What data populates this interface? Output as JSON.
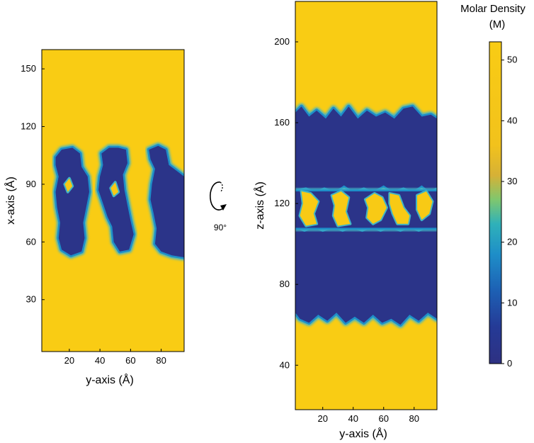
{
  "rotation": {
    "label": "90°"
  },
  "colors": {
    "high": "#f9cc14",
    "low": "#2e3182",
    "edge": "#1e8ec8",
    "edge_outer": "#3fb4c6",
    "background": "#ffffff"
  },
  "chart_data": [
    {
      "type": "heatmap",
      "id": "left-panel",
      "title": "",
      "xlabel": "y-axis (Å)",
      "ylabel": "x-axis (Å)",
      "xlim": [
        2,
        95
      ],
      "ylim": [
        3,
        160
      ],
      "xticks": [
        20,
        40,
        60,
        80
      ],
      "yticks": [
        30,
        60,
        90,
        120,
        150
      ],
      "value_outside_regions": 52,
      "low_density_regions": [
        {
          "name": "column-1",
          "value": 2,
          "points": [
            [
              11,
              104
            ],
            [
              15,
              108
            ],
            [
              22,
              109
            ],
            [
              27,
              106
            ],
            [
              28,
              99
            ],
            [
              32,
              94
            ],
            [
              33,
              86
            ],
            [
              31,
              78
            ],
            [
              29,
              70
            ],
            [
              30,
              62
            ],
            [
              28,
              55
            ],
            [
              21,
              53
            ],
            [
              15,
              56
            ],
            [
              13,
              62
            ],
            [
              14,
              70
            ],
            [
              12,
              78
            ],
            [
              11,
              86
            ],
            [
              13,
              94
            ],
            [
              11,
              100
            ]
          ]
        },
        {
          "name": "column-2",
          "value": 2,
          "points": [
            [
              41,
              106
            ],
            [
              46,
              109
            ],
            [
              52,
              109
            ],
            [
              57,
              108
            ],
            [
              58,
              101
            ],
            [
              55,
              95
            ],
            [
              56,
              87
            ],
            [
              58,
              79
            ],
            [
              60,
              71
            ],
            [
              62,
              64
            ],
            [
              59,
              56
            ],
            [
              53,
              55
            ],
            [
              49,
              60
            ],
            [
              48,
              68
            ],
            [
              45,
              73
            ],
            [
              42,
              80
            ],
            [
              39,
              87
            ],
            [
              40,
              94
            ],
            [
              42,
              100
            ]
          ]
        },
        {
          "name": "column-3",
          "value": 2,
          "points": [
            [
              72,
              108
            ],
            [
              78,
              110
            ],
            [
              83,
              108
            ],
            [
              85,
              100
            ],
            [
              90,
              97
            ],
            [
              95,
              94
            ],
            [
              95,
              52
            ],
            [
              87,
              53
            ],
            [
              80,
              55
            ],
            [
              76,
              59
            ],
            [
              77,
              67
            ],
            [
              75,
              75
            ],
            [
              73,
              82
            ],
            [
              74,
              90
            ],
            [
              76,
              98
            ],
            [
              73,
              103
            ]
          ]
        }
      ],
      "inclusions": [
        {
          "value": 48,
          "points": [
            [
              17,
              90
            ],
            [
              20,
              93
            ],
            [
              22,
              89
            ],
            [
              19,
              86
            ]
          ]
        },
        {
          "value": 48,
          "points": [
            [
              47,
              88
            ],
            [
              50,
              91
            ],
            [
              52,
              86
            ],
            [
              49,
              84
            ]
          ]
        }
      ]
    },
    {
      "type": "heatmap",
      "id": "right-panel",
      "title": "",
      "xlabel": "y-axis (Å)",
      "ylabel": "z-axis (Å)",
      "xlim": [
        2,
        95
      ],
      "ylim": [
        18,
        220
      ],
      "xticks": [
        20,
        40,
        60,
        80
      ],
      "yticks": [
        40,
        80,
        120,
        160,
        200
      ],
      "value_outside_regions": 52,
      "low_density_regions": [
        {
          "name": "band-upper",
          "value": 2,
          "points": [
            [
              2,
              165
            ],
            [
              6,
              168
            ],
            [
              11,
              163
            ],
            [
              16,
              166
            ],
            [
              22,
              162
            ],
            [
              27,
              167
            ],
            [
              32,
              163
            ],
            [
              37,
              168
            ],
            [
              43,
              162
            ],
            [
              49,
              166
            ],
            [
              55,
              163
            ],
            [
              61,
              165
            ],
            [
              67,
              162
            ],
            [
              73,
              167
            ],
            [
              79,
              168
            ],
            [
              85,
              163
            ],
            [
              91,
              164
            ],
            [
              95,
              162
            ],
            [
              95,
              128
            ],
            [
              90,
              126
            ],
            [
              85,
              129
            ],
            [
              79,
              126
            ],
            [
              73,
              128
            ],
            [
              66,
              126
            ],
            [
              60,
              129
            ],
            [
              53,
              126
            ],
            [
              47,
              128
            ],
            [
              40,
              126
            ],
            [
              34,
              129
            ],
            [
              28,
              126
            ],
            [
              21,
              128
            ],
            [
              15,
              126
            ],
            [
              9,
              128
            ],
            [
              2,
              127
            ]
          ]
        },
        {
          "name": "band-lower",
          "value": 2,
          "points": [
            [
              2,
              108
            ],
            [
              8,
              106
            ],
            [
              14,
              108
            ],
            [
              20,
              106
            ],
            [
              27,
              108
            ],
            [
              33,
              106
            ],
            [
              39,
              108
            ],
            [
              46,
              106
            ],
            [
              52,
              108
            ],
            [
              58,
              106
            ],
            [
              64,
              108
            ],
            [
              71,
              106
            ],
            [
              77,
              108
            ],
            [
              83,
              106
            ],
            [
              89,
              108
            ],
            [
              95,
              107
            ],
            [
              95,
              63
            ],
            [
              89,
              66
            ],
            [
              83,
              62
            ],
            [
              77,
              65
            ],
            [
              71,
              60
            ],
            [
              65,
              63
            ],
            [
              59,
              61
            ],
            [
              53,
              65
            ],
            [
              47,
              61
            ],
            [
              41,
              64
            ],
            [
              35,
              61
            ],
            [
              29,
              66
            ],
            [
              23,
              62
            ],
            [
              17,
              65
            ],
            [
              11,
              61
            ],
            [
              5,
              63
            ],
            [
              2,
              66
            ]
          ]
        },
        {
          "name": "middle-channels",
          "value": 2,
          "points": [
            [
              2,
              126
            ],
            [
              95,
              126
            ],
            [
              95,
              108
            ],
            [
              2,
              108
            ]
          ]
        }
      ],
      "inclusions": [
        {
          "value": 50,
          "points": [
            [
              6,
              126
            ],
            [
              12,
              125
            ],
            [
              17,
              121
            ],
            [
              14,
              115
            ],
            [
              16,
              110
            ],
            [
              9,
              109
            ],
            [
              5,
              114
            ],
            [
              7,
              120
            ]
          ]
        },
        {
          "value": 50,
          "points": [
            [
              26,
              124
            ],
            [
              32,
              126
            ],
            [
              37,
              123
            ],
            [
              35,
              116
            ],
            [
              38,
              110
            ],
            [
              30,
              109
            ],
            [
              27,
              114
            ],
            [
              28,
              119
            ]
          ]
        },
        {
          "value": 50,
          "points": [
            [
              48,
              122
            ],
            [
              54,
              125
            ],
            [
              59,
              123
            ],
            [
              62,
              118
            ],
            [
              58,
              112
            ],
            [
              53,
              110
            ],
            [
              49,
              113
            ],
            [
              50,
              118
            ]
          ]
        },
        {
          "value": 50,
          "points": [
            [
              64,
              125
            ],
            [
              70,
              124
            ],
            [
              73,
              118
            ],
            [
              77,
              114
            ],
            [
              76,
              110
            ],
            [
              69,
              110
            ],
            [
              66,
              115
            ],
            [
              64,
              120
            ]
          ]
        },
        {
          "value": 50,
          "points": [
            [
              82,
              124
            ],
            [
              88,
              126
            ],
            [
              92,
              121
            ],
            [
              90,
              115
            ],
            [
              85,
              112
            ],
            [
              82,
              117
            ]
          ]
        }
      ]
    }
  ],
  "colorbar": {
    "title_line1": "Molar Density",
    "title_line2": "(M)",
    "min": 0,
    "max": 53,
    "ticks": [
      0,
      10,
      20,
      30,
      40,
      50
    ],
    "tick_labels": [
      "0",
      "10",
      "20",
      "30",
      "40",
      "50"
    ],
    "stops": [
      {
        "value": 0,
        "color": "#2e3182"
      },
      {
        "value": 6,
        "color": "#253a96"
      },
      {
        "value": 12,
        "color": "#1d60b4"
      },
      {
        "value": 18,
        "color": "#1e8ec8"
      },
      {
        "value": 23,
        "color": "#2fb1b9"
      },
      {
        "value": 27,
        "color": "#7fc76e"
      },
      {
        "value": 31,
        "color": "#d6b136"
      },
      {
        "value": 36,
        "color": "#f2c21c"
      },
      {
        "value": 53,
        "color": "#f9cc14"
      }
    ]
  }
}
